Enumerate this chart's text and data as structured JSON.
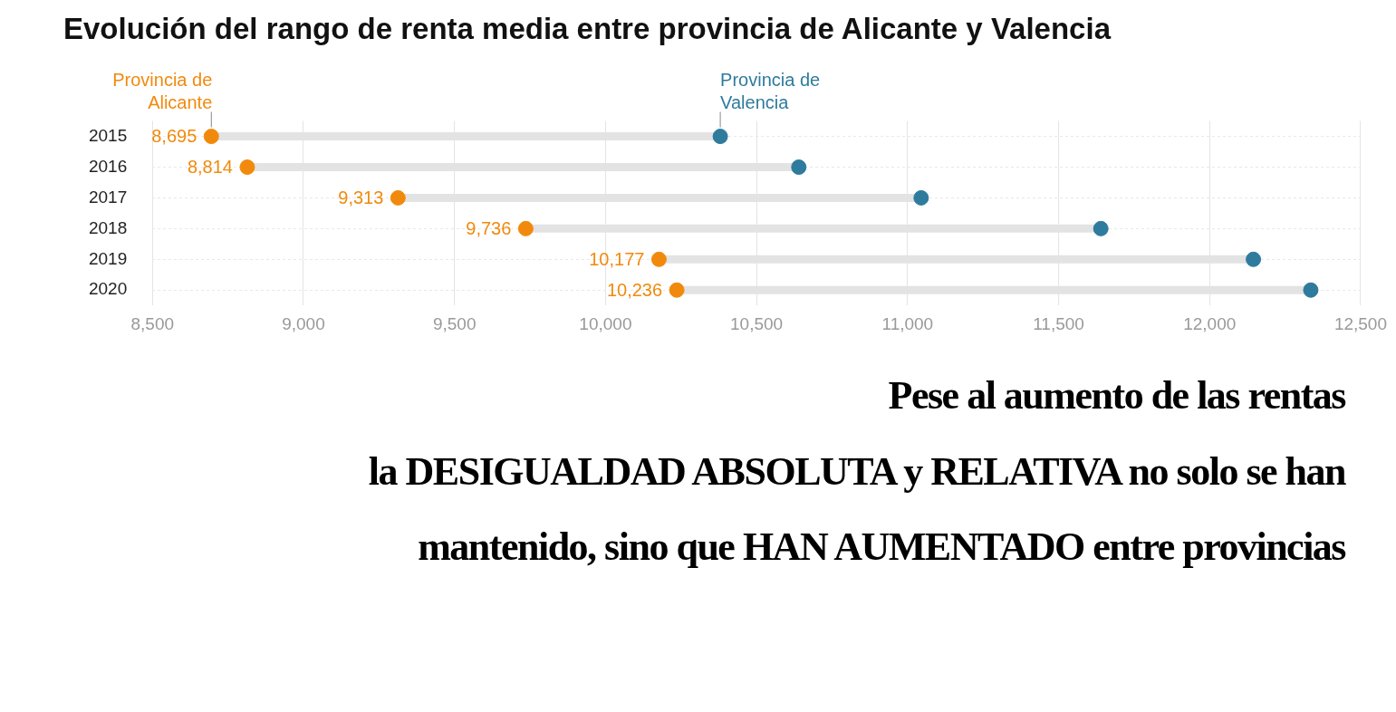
{
  "chart_data": {
    "type": "scatter",
    "orientation": "horizontal",
    "title": "Evolución del rango de renta media entre provincia de Alicante y Valencia",
    "categories": [
      "2015",
      "2016",
      "2017",
      "2018",
      "2019",
      "2020"
    ],
    "series": [
      {
        "name": "Provincia de Alicante",
        "color": "#f18a0c",
        "values": [
          8695,
          8814,
          9313,
          9736,
          10177,
          10236
        ],
        "value_labels": [
          "8,695",
          "8,814",
          "9,313",
          "9,736",
          "10,177",
          "10,236"
        ]
      },
      {
        "name": "Provincia de Valencia",
        "color": "#2e7b9d",
        "values": [
          10380,
          10640,
          11045,
          11640,
          12145,
          12335
        ]
      }
    ],
    "xlim": [
      8500,
      12500
    ],
    "xticks": [
      {
        "value": 8500,
        "label": "8,500"
      },
      {
        "value": 9000,
        "label": "9,000"
      },
      {
        "value": 9500,
        "label": "9,500"
      },
      {
        "value": 10000,
        "label": "10,000"
      },
      {
        "value": 10500,
        "label": "10,500"
      },
      {
        "value": 11000,
        "label": "11,000"
      },
      {
        "value": 11500,
        "label": "11,500"
      },
      {
        "value": 12000,
        "label": "12,000"
      },
      {
        "value": 12500,
        "label": "12,500"
      }
    ],
    "grid": true,
    "legend": false,
    "marker": "circle",
    "annotations": [
      "Pese al aumento de las rentas",
      "la DESIGUALDAD ABSOLUTA y RELATIVA no solo se han",
      "mantenido, sino que HAN AUMENTADO entre provincias"
    ]
  }
}
